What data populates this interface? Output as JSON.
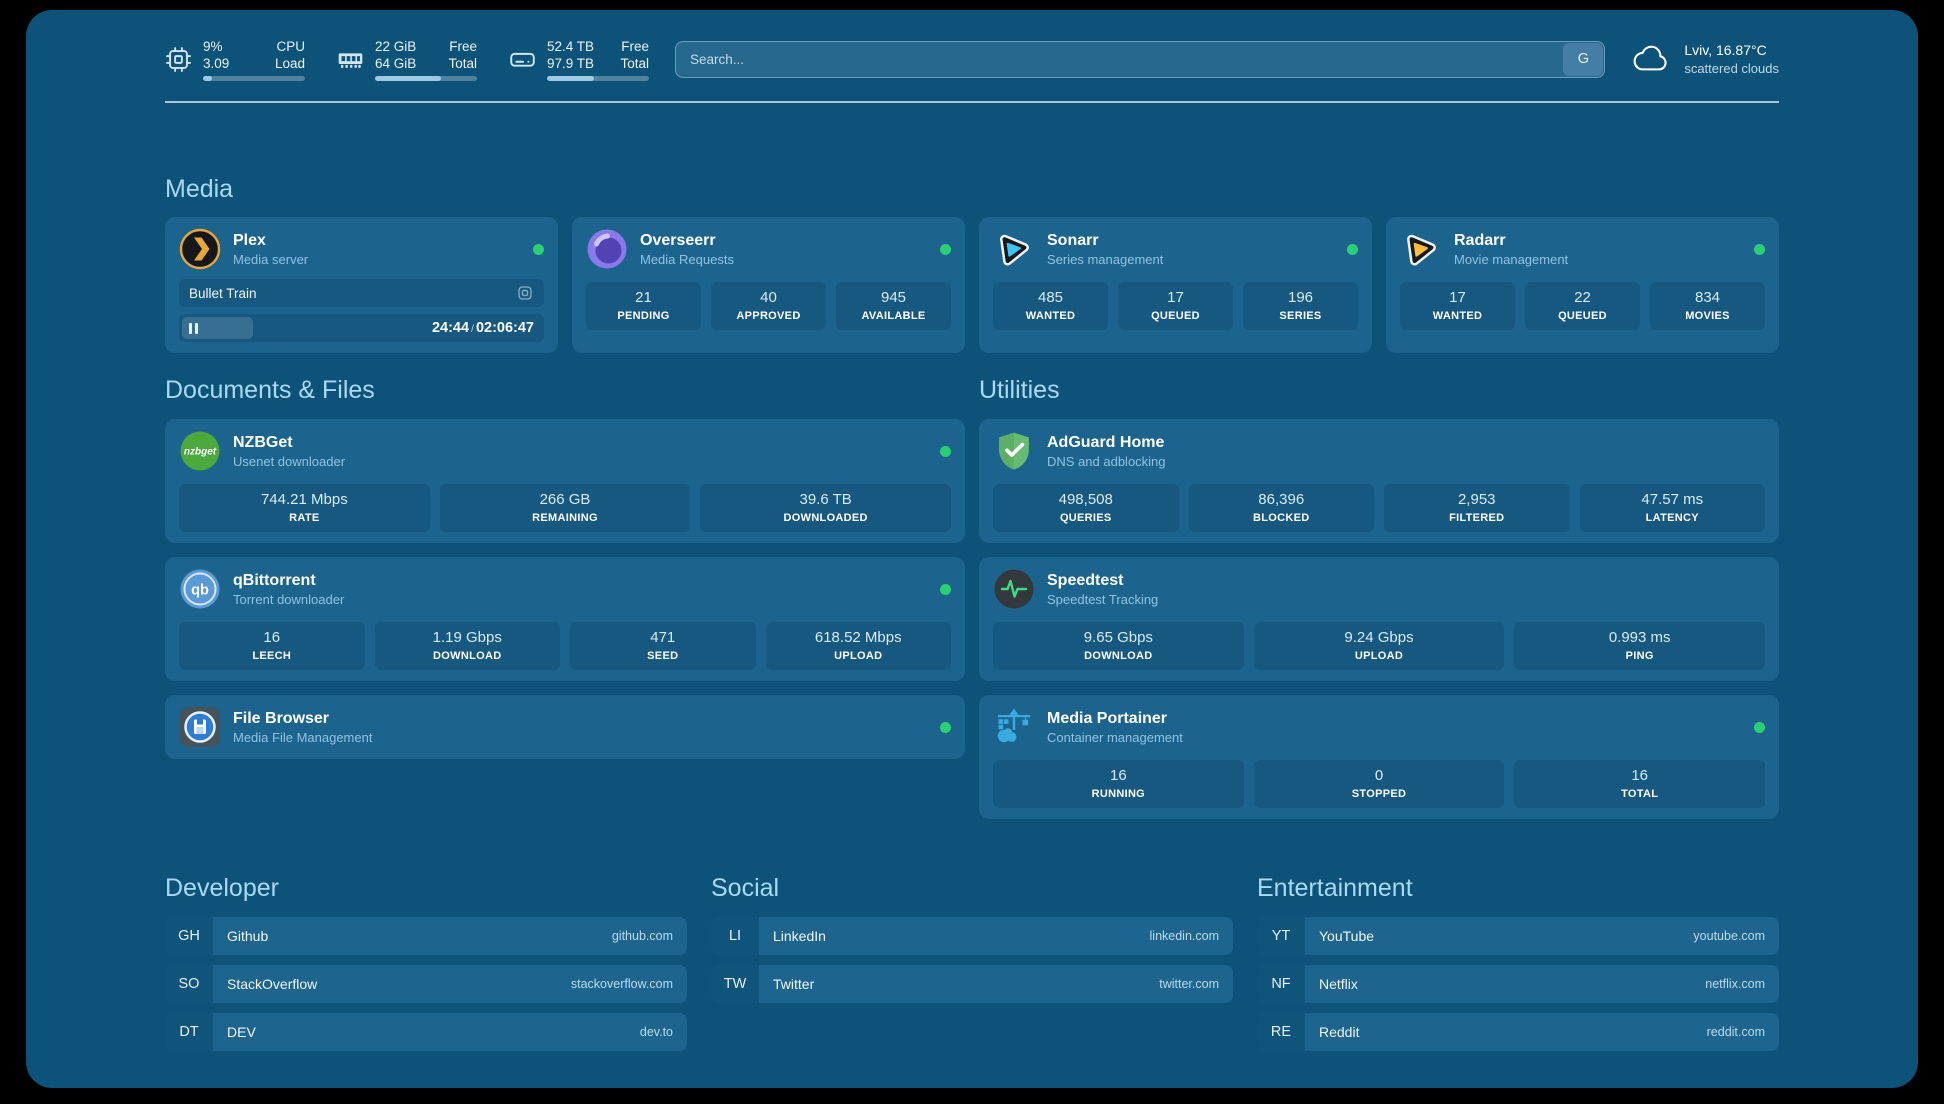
{
  "colors": {
    "page_background": "#000000",
    "dashboard_background": "#0d5379",
    "card_background": "#1c648e",
    "tile_background": "#16587f",
    "accent_heading": "#a9d9f6",
    "subtitle": "#8fc3e3",
    "status_online": "#2bd072",
    "url_text": "#b9dcf2"
  },
  "header": {
    "stats": [
      {
        "name": "cpu",
        "value_top": "9%",
        "value_bottom": "3.09",
        "label_top": "CPU",
        "label_bottom": "Load",
        "progress": 9
      },
      {
        "name": "memory",
        "value_top": "22 GiB",
        "value_bottom": "64 GiB",
        "label_top": "Free",
        "label_bottom": "Total",
        "progress": 65
      },
      {
        "name": "disk",
        "value_top": "52.4 TB",
        "value_bottom": "97.9 TB",
        "label_top": "Free",
        "label_bottom": "Total",
        "progress": 46
      }
    ],
    "search": {
      "placeholder": "Search...",
      "provider_button": "G"
    },
    "weather": {
      "location": "Lviv, 16.87°C",
      "condition": "scattered clouds"
    }
  },
  "media": {
    "title": "Media",
    "plex": {
      "name": "Plex",
      "description": "Media server",
      "status": "online",
      "now_playing": "Bullet Train",
      "elapsed": "24:44",
      "time_separator": "/",
      "duration": "02:06:47",
      "progress_percent": 19.5
    },
    "overseerr": {
      "name": "Overseerr",
      "description": "Media Requests",
      "status": "online",
      "stats": [
        {
          "value": "21",
          "label": "PENDING"
        },
        {
          "value": "40",
          "label": "APPROVED"
        },
        {
          "value": "945",
          "label": "AVAILABLE"
        }
      ]
    },
    "sonarr": {
      "name": "Sonarr",
      "description": "Series management",
      "status": "online",
      "stats": [
        {
          "value": "485",
          "label": "WANTED"
        },
        {
          "value": "17",
          "label": "QUEUED"
        },
        {
          "value": "196",
          "label": "SERIES"
        }
      ]
    },
    "radarr": {
      "name": "Radarr",
      "description": "Movie management",
      "status": "online",
      "stats": [
        {
          "value": "17",
          "label": "WANTED"
        },
        {
          "value": "22",
          "label": "QUEUED"
        },
        {
          "value": "834",
          "label": "MOVIES"
        }
      ]
    }
  },
  "documents": {
    "title": "Documents & Files",
    "nzbget": {
      "name": "NZBGet",
      "description": "Usenet downloader",
      "status": "online",
      "stats": [
        {
          "value": "744.21 Mbps",
          "label": "RATE"
        },
        {
          "value": "266 GB",
          "label": "REMAINING"
        },
        {
          "value": "39.6 TB",
          "label": "DOWNLOADED"
        }
      ]
    },
    "qbittorrent": {
      "name": "qBittorrent",
      "description": "Torrent downloader",
      "status": "online",
      "stats": [
        {
          "value": "16",
          "label": "LEECH"
        },
        {
          "value": "1.19 Gbps",
          "label": "DOWNLOAD"
        },
        {
          "value": "471",
          "label": "SEED"
        },
        {
          "value": "618.52 Mbps",
          "label": "UPLOAD"
        }
      ]
    },
    "filebrowser": {
      "name": "File Browser",
      "description": "Media File Management",
      "status": "online"
    }
  },
  "utilities": {
    "title": "Utilities",
    "adguard": {
      "name": "AdGuard Home",
      "description": "DNS and adblocking",
      "stats": [
        {
          "value": "498,508",
          "label": "QUERIES"
        },
        {
          "value": "86,396",
          "label": "BLOCKED"
        },
        {
          "value": "2,953",
          "label": "FILTERED"
        },
        {
          "value": "47.57 ms",
          "label": "LATENCY"
        }
      ]
    },
    "speedtest": {
      "name": "Speedtest",
      "description": "Speedtest Tracking",
      "stats": [
        {
          "value": "9.65 Gbps",
          "label": "DOWNLOAD"
        },
        {
          "value": "9.24 Gbps",
          "label": "UPLOAD"
        },
        {
          "value": "0.993 ms",
          "label": "PING"
        }
      ]
    },
    "portainer": {
      "name": "Media Portainer",
      "description": "Container management",
      "status": "online",
      "stats": [
        {
          "value": "16",
          "label": "RUNNING"
        },
        {
          "value": "0",
          "label": "STOPPED"
        },
        {
          "value": "16",
          "label": "TOTAL"
        }
      ]
    }
  },
  "bookmarks": {
    "developer": {
      "title": "Developer",
      "items": [
        {
          "abbr": "GH",
          "name": "Github",
          "url": "github.com"
        },
        {
          "abbr": "SO",
          "name": "StackOverflow",
          "url": "stackoverflow.com"
        },
        {
          "abbr": "DT",
          "name": "DEV",
          "url": "dev.to"
        }
      ]
    },
    "social": {
      "title": "Social",
      "items": [
        {
          "abbr": "LI",
          "name": "LinkedIn",
          "url": "linkedin.com"
        },
        {
          "abbr": "TW",
          "name": "Twitter",
          "url": "twitter.com"
        }
      ]
    },
    "entertainment": {
      "title": "Entertainment",
      "items": [
        {
          "abbr": "YT",
          "name": "YouTube",
          "url": "youtube.com"
        },
        {
          "abbr": "NF",
          "name": "Netflix",
          "url": "netflix.com"
        },
        {
          "abbr": "RE",
          "name": "Reddit",
          "url": "reddit.com"
        }
      ]
    }
  }
}
